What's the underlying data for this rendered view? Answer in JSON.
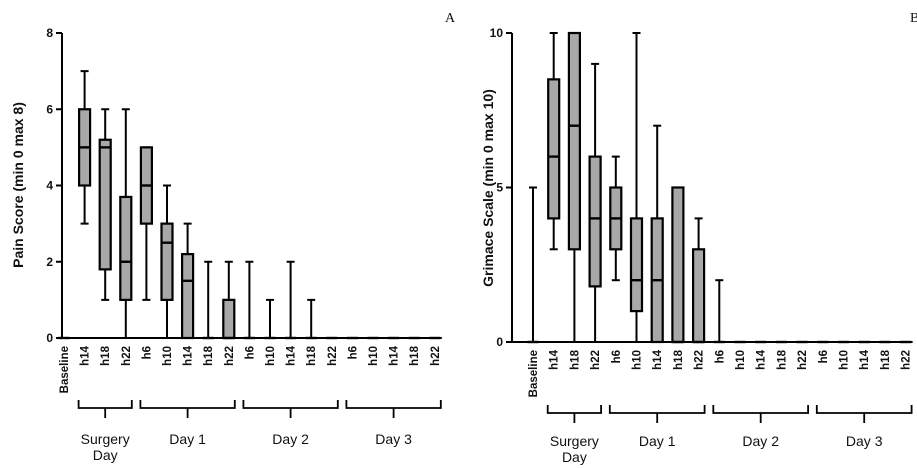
{
  "chart_data": [
    {
      "type": "box",
      "panel_label": "A",
      "ylabel": "Pain Score (min 0 max 8)",
      "ylim": [
        0,
        8
      ],
      "yticks": [
        "0",
        "2",
        "4",
        "6",
        "8"
      ],
      "categories": [
        "Baseline",
        "h14",
        "h18",
        "h22",
        "h6",
        "h10",
        "h14",
        "h18",
        "h22",
        "h6",
        "h10",
        "h14",
        "h18",
        "h22",
        "h6",
        "h10",
        "h14",
        "h18",
        "h22"
      ],
      "boxes": [
        {
          "min": 0,
          "q1": 0,
          "median": 0,
          "q3": 0,
          "max": 0
        },
        {
          "min": 3,
          "q1": 4,
          "median": 5,
          "q3": 6,
          "max": 7
        },
        {
          "min": 1,
          "q1": 1.8,
          "median": 5,
          "q3": 5.2,
          "max": 6
        },
        {
          "min": 0,
          "q1": 1,
          "median": 2,
          "q3": 3.7,
          "max": 6
        },
        {
          "min": 1,
          "q1": 3,
          "median": 4,
          "q3": 5,
          "max": 5
        },
        {
          "min": 0,
          "q1": 1,
          "median": 2.5,
          "q3": 3,
          "max": 4
        },
        {
          "min": 0,
          "q1": 0,
          "median": 1.5,
          "q3": 2.2,
          "max": 3
        },
        {
          "min": 0,
          "q1": 0,
          "median": 0,
          "q3": 0,
          "max": 2
        },
        {
          "min": 0,
          "q1": 0,
          "median": 0,
          "q3": 1,
          "max": 2
        },
        {
          "min": 0,
          "q1": 0,
          "median": 0,
          "q3": 0,
          "max": 2
        },
        {
          "min": 0,
          "q1": 0,
          "median": 0,
          "q3": 0,
          "max": 1
        },
        {
          "min": 0,
          "q1": 0,
          "median": 0,
          "q3": 0,
          "max": 2
        },
        {
          "min": 0,
          "q1": 0,
          "median": 0,
          "q3": 0,
          "max": 1
        },
        {
          "min": 0,
          "q1": 0,
          "median": 0,
          "q3": 0,
          "max": 0
        },
        {
          "min": 0,
          "q1": 0,
          "median": 0,
          "q3": 0,
          "max": 0
        },
        {
          "min": 0,
          "q1": 0,
          "median": 0,
          "q3": 0,
          "max": 0
        },
        {
          "min": 0,
          "q1": 0,
          "median": 0,
          "q3": 0,
          "max": 0
        },
        {
          "min": 0,
          "q1": 0,
          "median": 0,
          "q3": 0,
          "max": 0
        },
        {
          "min": 0,
          "q1": 0,
          "median": 0,
          "q3": 0,
          "max": 0
        }
      ],
      "groups": [
        {
          "label_lines": [
            "Surgery",
            "Day"
          ],
          "from": 1,
          "to": 3
        },
        {
          "label_lines": [
            "Day 1"
          ],
          "from": 4,
          "to": 8
        },
        {
          "label_lines": [
            "Day 2"
          ],
          "from": 9,
          "to": 13
        },
        {
          "label_lines": [
            "Day 3"
          ],
          "from": 14,
          "to": 18
        }
      ]
    },
    {
      "type": "box",
      "panel_label": "B",
      "ylabel": "Grimace  Scale (min 0 max 10)",
      "ylim": [
        0,
        10
      ],
      "yticks": [
        "0",
        "5",
        "10"
      ],
      "categories": [
        "Baseline",
        "h14",
        "h18",
        "h22",
        "h6",
        "h10",
        "h14",
        "h18",
        "h22",
        "h6",
        "h10",
        "h14",
        "h18",
        "h22",
        "h6",
        "h10",
        "h14",
        "h18",
        "h22"
      ],
      "boxes": [
        {
          "min": 0,
          "q1": 0,
          "median": 0,
          "q3": 0,
          "max": 5
        },
        {
          "min": 3,
          "q1": 4,
          "median": 6,
          "q3": 8.5,
          "max": 10
        },
        {
          "min": 0,
          "q1": 3,
          "median": 7,
          "q3": 10,
          "max": 10
        },
        {
          "min": 0,
          "q1": 1.8,
          "median": 4,
          "q3": 6,
          "max": 9
        },
        {
          "min": 2,
          "q1": 3,
          "median": 4,
          "q3": 5,
          "max": 6
        },
        {
          "min": 0,
          "q1": 1,
          "median": 2,
          "q3": 4,
          "max": 10
        },
        {
          "min": 0,
          "q1": 0,
          "median": 2,
          "q3": 4,
          "max": 7
        },
        {
          "min": 0,
          "q1": 0,
          "median": 0,
          "q3": 5,
          "max": 5
        },
        {
          "min": 0,
          "q1": 0,
          "median": 0,
          "q3": 3,
          "max": 4
        },
        {
          "min": 0,
          "q1": 0,
          "median": 0,
          "q3": 0,
          "max": 2
        },
        {
          "min": 0,
          "q1": 0,
          "median": 0,
          "q3": 0,
          "max": 0
        },
        {
          "min": 0,
          "q1": 0,
          "median": 0,
          "q3": 0,
          "max": 0
        },
        {
          "min": 0,
          "q1": 0,
          "median": 0,
          "q3": 0,
          "max": 0
        },
        {
          "min": 0,
          "q1": 0,
          "median": 0,
          "q3": 0,
          "max": 0
        },
        {
          "min": 0,
          "q1": 0,
          "median": 0,
          "q3": 0,
          "max": 0
        },
        {
          "min": 0,
          "q1": 0,
          "median": 0,
          "q3": 0,
          "max": 0
        },
        {
          "min": 0,
          "q1": 0,
          "median": 0,
          "q3": 0,
          "max": 0
        },
        {
          "min": 0,
          "q1": 0,
          "median": 0,
          "q3": 0,
          "max": 0
        },
        {
          "min": 0,
          "q1": 0,
          "median": 0,
          "q3": 0,
          "max": 0
        }
      ],
      "groups": [
        {
          "label_lines": [
            "Surgery",
            "Day"
          ],
          "from": 1,
          "to": 3
        },
        {
          "label_lines": [
            "Day 1"
          ],
          "from": 4,
          "to": 8
        },
        {
          "label_lines": [
            "Day 2"
          ],
          "from": 9,
          "to": 13
        },
        {
          "label_lines": [
            "Day 3"
          ],
          "from": 14,
          "to": 18
        }
      ]
    }
  ],
  "colors": {
    "box_fill": "#a8a8a8",
    "stroke": "#000000"
  }
}
